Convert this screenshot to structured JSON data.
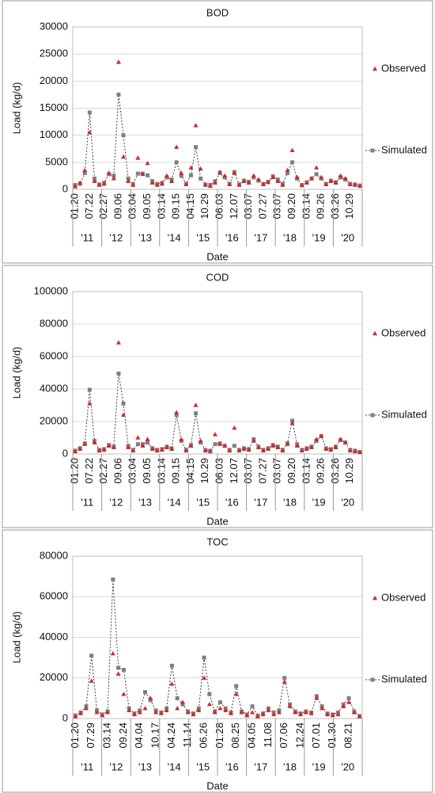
{
  "chart_data": [
    {
      "type": "line",
      "title": "BOD",
      "x_label": "Date",
      "y_label": "Load (kg/d)",
      "categories": [
        "01.20",
        null,
        null,
        "07.22",
        null,
        null,
        "02.27",
        null,
        null,
        "09.06",
        null,
        null,
        "03.04",
        null,
        null,
        "09.05",
        null,
        null,
        "03.14",
        null,
        null,
        "09.15",
        null,
        null,
        "04.15",
        null,
        null,
        "10.29",
        null,
        null,
        "06.03",
        null,
        null,
        "12.07",
        null,
        null,
        "03.07",
        null,
        null,
        "07.27",
        null,
        null,
        "03.07",
        null,
        null,
        "09.20",
        null,
        null,
        "03.14",
        null,
        null,
        "09.26",
        null,
        null,
        "03.26",
        null,
        null,
        "10.29",
        null,
        null
      ],
      "groups": [
        "'11",
        "'12",
        "'13",
        "'14",
        "'15",
        "'16",
        "'17",
        "'18",
        "'19",
        "'20"
      ],
      "ylim": [
        0,
        30000
      ],
      "yticks": [
        0,
        5000,
        10000,
        15000,
        20000,
        25000,
        30000
      ],
      "series": [
        {
          "name": "Simulated",
          "color": "#7f7f7f",
          "line_color": "#404040",
          "marker": "square",
          "line_style": "dashed",
          "values": [
            800,
            1000,
            3000,
            14200,
            2000,
            900,
            1200,
            2800,
            2500,
            17500,
            10000,
            2000,
            1000,
            2900,
            2900,
            2600,
            1500,
            1000,
            1200,
            2200,
            1800,
            5000,
            2500,
            1000,
            2600,
            7800,
            2000,
            900,
            800,
            1500,
            3000,
            2200,
            1000,
            3200,
            900,
            1600,
            1400,
            2200,
            1600,
            1000,
            1400,
            2400,
            1800,
            1000,
            3000,
            5000,
            2000,
            800,
            1300,
            2000,
            2800,
            2000,
            1000,
            1600,
            1300,
            2200,
            1800,
            1000,
            900,
            700
          ]
        },
        {
          "name": "Observed",
          "color": "#d02828",
          "marker": "triangle",
          "line_style": "none",
          "values": [
            500,
            1200,
            3500,
            10500,
            1500,
            800,
            1000,
            3000,
            2000,
            23500,
            6000,
            1500,
            800,
            5800,
            2800,
            4800,
            1200,
            800,
            1000,
            2500,
            1500,
            7800,
            3000,
            900,
            4000,
            11800,
            3800,
            800,
            600,
            1200,
            3200,
            2500,
            900,
            3000,
            800,
            1500,
            1200,
            2500,
            1800,
            900,
            1300,
            2200,
            1500,
            800,
            3500,
            7200,
            2200,
            700,
            1200,
            2000,
            4000,
            2200,
            900,
            1500,
            1200,
            2500,
            2000,
            900,
            800,
            600
          ]
        }
      ]
    },
    {
      "type": "line",
      "title": "COD",
      "x_label": "Date",
      "y_label": "Load (kg/d)",
      "categories": [
        "01.20",
        null,
        null,
        "07.22",
        null,
        null,
        "02.27",
        null,
        null,
        "09.06",
        null,
        null,
        "03.04",
        null,
        null,
        "09.05",
        null,
        null,
        "03.14",
        null,
        null,
        "09.15",
        null,
        null,
        "04.15",
        null,
        null,
        "10.29",
        null,
        null,
        "06.03",
        null,
        null,
        "12.07",
        null,
        null,
        "03.07",
        null,
        null,
        "07.27",
        null,
        null,
        "03.07",
        null,
        null,
        "09.20",
        null,
        null,
        "03.14",
        null,
        null,
        "09.26",
        null,
        null,
        "03.26",
        null,
        null,
        "10.29",
        null,
        null
      ],
      "groups": [
        "'11",
        "'12",
        "'13",
        "'14",
        "'15",
        "'16",
        "'17",
        "'18",
        "'19",
        "'20"
      ],
      "ylim": [
        0,
        100000
      ],
      "yticks": [
        0,
        20000,
        40000,
        60000,
        80000,
        100000
      ],
      "series": [
        {
          "name": "Simulated",
          "color": "#7f7f7f",
          "line_color": "#404040",
          "marker": "square",
          "line_style": "dashed",
          "values": [
            2000,
            3500,
            6500,
            39500,
            8000,
            2500,
            3000,
            5500,
            4500,
            49500,
            31000,
            5000,
            2500,
            6000,
            6000,
            7000,
            3500,
            2500,
            3000,
            4500,
            3500,
            24000,
            8000,
            2500,
            5500,
            25000,
            7000,
            2500,
            2000,
            6000,
            6500,
            5000,
            2500,
            5000,
            2500,
            3500,
            3000,
            9000,
            4500,
            2500,
            3500,
            5500,
            4500,
            2500,
            6500,
            20500,
            6000,
            2500,
            3500,
            4500,
            8000,
            11000,
            3500,
            3000,
            4500,
            8500,
            7000,
            2500,
            2000,
            1200
          ]
        },
        {
          "name": "Observed",
          "color": "#d02828",
          "marker": "triangle",
          "line_style": "none",
          "values": [
            1500,
            3000,
            6000,
            31000,
            7000,
            2000,
            2500,
            5000,
            4000,
            68500,
            24000,
            4000,
            2000,
            10000,
            5000,
            9000,
            3000,
            2000,
            2500,
            4000,
            3000,
            25500,
            9000,
            2000,
            5000,
            30000,
            8000,
            2000,
            1500,
            12000,
            6000,
            5000,
            2000,
            16000,
            2000,
            3000,
            2500,
            8000,
            4000,
            2000,
            3000,
            5000,
            4000,
            2000,
            6000,
            19000,
            5000,
            2000,
            3000,
            4000,
            9000,
            11000,
            3000,
            2500,
            4000,
            9000,
            7000,
            2000,
            1500,
            1000
          ]
        }
      ]
    },
    {
      "type": "line",
      "title": "TOC",
      "x_label": "Date",
      "y_label": "Load (kg/d)",
      "categories": [
        "01.20",
        null,
        null,
        "07.29",
        null,
        null,
        "03.14",
        null,
        null,
        "09.24",
        null,
        null,
        "04.04",
        null,
        null,
        "10.17",
        null,
        null,
        "04.24",
        null,
        null,
        "11.14",
        null,
        null,
        "06.26",
        null,
        null,
        "01.28",
        null,
        null,
        "08.25",
        null,
        null,
        "04.05",
        null,
        null,
        "11.08",
        null,
        null,
        "07.06",
        null,
        null,
        "12.24",
        null,
        null,
        "07.01",
        null,
        null,
        "01.30",
        null,
        null,
        "08.21",
        null,
        null
      ],
      "groups": [
        "'11",
        "'12",
        "'13",
        "'14",
        "'15",
        "'16",
        "'17",
        "'18",
        "'19",
        "'20"
      ],
      "ylim": [
        0,
        80000
      ],
      "yticks": [
        0,
        20000,
        40000,
        60000,
        80000
      ],
      "series": [
        {
          "name": "Simulated",
          "color": "#7f7f7f",
          "line_color": "#404040",
          "marker": "square",
          "line_style": "dashed",
          "values": [
            1500,
            3000,
            6000,
            31000,
            4000,
            2000,
            3500,
            68500,
            25000,
            24000,
            5000,
            2500,
            4000,
            13000,
            9000,
            4000,
            3000,
            5000,
            26000,
            10000,
            7000,
            3500,
            2500,
            5000,
            30000,
            12000,
            3500,
            8000,
            5000,
            3000,
            16000,
            3500,
            2000,
            6000,
            1500,
            2500,
            5000,
            3000,
            4000,
            20000,
            7000,
            3500,
            2500,
            3500,
            3000,
            11000,
            6000,
            2500,
            2000,
            3000,
            7000,
            10000,
            3500,
            1200
          ]
        },
        {
          "name": "Observed",
          "color": "#d02828",
          "marker": "triangle",
          "line_style": "none",
          "values": [
            1000,
            2500,
            5000,
            18500,
            3000,
            1500,
            3000,
            32000,
            22000,
            12000,
            4000,
            2000,
            3000,
            5000,
            10000,
            3000,
            2500,
            4000,
            17000,
            5000,
            8000,
            3000,
            2000,
            4000,
            20000,
            7000,
            3000,
            5000,
            4000,
            2500,
            12000,
            3000,
            1500,
            3000,
            1000,
            2000,
            4000,
            2000,
            3000,
            18000,
            6000,
            3000,
            2000,
            3000,
            2500,
            10000,
            5000,
            2000,
            1500,
            2000,
            6000,
            8000,
            3000,
            1000
          ]
        }
      ]
    }
  ]
}
